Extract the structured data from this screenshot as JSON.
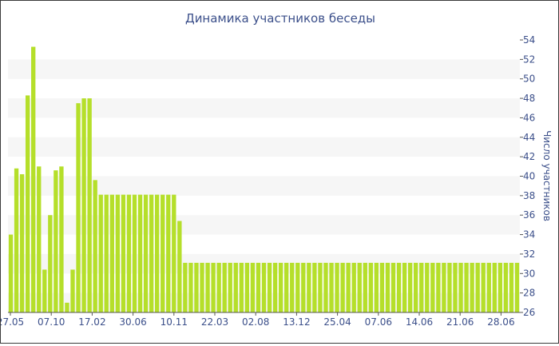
{
  "chart_data": {
    "type": "bar",
    "title": "Динамика участников беседы",
    "ylabel": "Число участников",
    "ylim": [
      26,
      54
    ],
    "yticks": [
      26,
      28,
      30,
      32,
      34,
      36,
      38,
      40,
      42,
      44,
      46,
      48,
      50,
      52,
      54
    ],
    "xtick_labels": [
      "27.05",
      "07.10",
      "17.02",
      "30.06",
      "10.11",
      "22.03",
      "02.08",
      "13.12",
      "25.04",
      "07.06",
      "14.06",
      "21.06",
      "28.06"
    ],
    "values": [
      34,
      40.8,
      40.2,
      48.3,
      53.3,
      41,
      30.4,
      36,
      40.6,
      41,
      27,
      30.4,
      47.5,
      48,
      48,
      39.6,
      38.1,
      38.1,
      38.1,
      38.1,
      38.1,
      38.1,
      38.1,
      38.1,
      38.1,
      38.1,
      38.1,
      38.1,
      38.1,
      38.1,
      35.4,
      31.1,
      31.1,
      31.1,
      31.1,
      31.1,
      31.1,
      31.1,
      31.1,
      31.1,
      31.1,
      31.1,
      31.1,
      31.1,
      31.1,
      31.1,
      31.1,
      31.1,
      31.1,
      31.1,
      31.1,
      31.1,
      31.1,
      31.1,
      31.1,
      31.1,
      31.1,
      31.1,
      31.1,
      31.1,
      31.1,
      31.1,
      31.1,
      31.1,
      31.1,
      31.1,
      31.1,
      31.1,
      31.1,
      31.1,
      31.1,
      31.1,
      31.1,
      31.1,
      31.1,
      31.1,
      31.1,
      31.1,
      31.1,
      31.1,
      31.1,
      31.1,
      31.1,
      31.1,
      31.1,
      31.1,
      31.1,
      31.1,
      31.1,
      31.1,
      31.1
    ],
    "grid": "horizontal-bands",
    "colors": {
      "bar": "#b5df2a",
      "band": "#f6f6f6",
      "text": "#3b4f8a",
      "axis": "#555555"
    }
  }
}
